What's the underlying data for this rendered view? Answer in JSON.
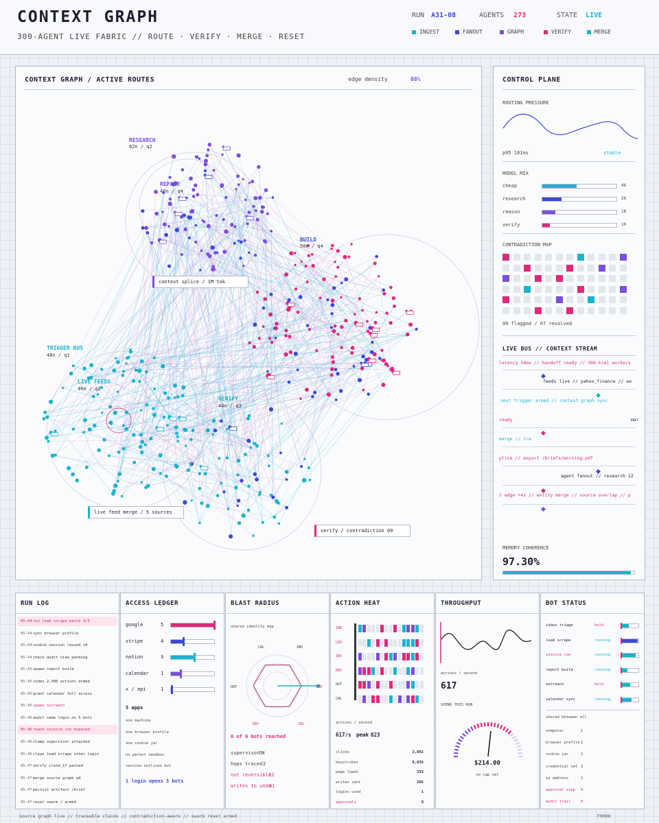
{
  "header": {
    "title": "CONTEXT GRAPH",
    "subtitle": "300-AGENT LIVE FABRIC // ROUTE · VERIFY · MERGE · RESET",
    "run_label": "RUN",
    "run_value": "A31-08",
    "agents_label": "AGENTS",
    "agents_value": "273",
    "state_label": "STATE",
    "state_value": "LIVE",
    "legend": [
      {
        "label": "INGEST",
        "color": "#18b4d0"
      },
      {
        "label": "FANOUT",
        "color": "#3b4ad8"
      },
      {
        "label": "GRAPH",
        "color": "#7c4ddf"
      },
      {
        "label": "VERIFY",
        "color": "#e0287a"
      },
      {
        "label": "MERGE",
        "color": "#18b4d0"
      }
    ]
  },
  "graph": {
    "title": "CONTEXT GRAPH / ACTIVE ROUTES",
    "density_label": "edge density",
    "density_value": "88%",
    "clusters": [
      {
        "name": "RESEARCH",
        "stat": "62n / q2",
        "color": "#7c4ddf"
      },
      {
        "name": "REPAIR",
        "stat": "46n / q4",
        "color": "#7c4ddf"
      },
      {
        "name": "BUILD",
        "stat": "50n / q4",
        "color": "#3b4ad8"
      },
      {
        "name": "TRIGGER BUS",
        "stat": "48n / q1",
        "color": "#18b4d0"
      },
      {
        "name": "LIVE FEEDS",
        "stat": "46n / q2",
        "color": "#18b4d0"
      },
      {
        "name": "VERIFY",
        "stat": "44n / q3",
        "color": "#18b4d0"
      }
    ],
    "callouts": [
      {
        "text": "context splice / 1M tok",
        "color": "#7c4ddf"
      },
      {
        "text": "live feed merge / 5 sources",
        "color": "#18b4d0"
      },
      {
        "text": "verify / contradiction 09",
        "color": "#e0287a"
      }
    ]
  },
  "control": {
    "title": "CONTROL PLANE",
    "pressure_label": "ROUTING PRESSURE",
    "p95": "p95 181ms",
    "pressure_state": "stable",
    "mix_label": "MODEL MIX",
    "mix": [
      {
        "name": "cheap",
        "value": 46,
        "color": "#18b4d0"
      },
      {
        "name": "research",
        "value": 26,
        "color": "#3b4ad8"
      },
      {
        "name": "reason",
        "value": 18,
        "color": "#7c4ddf"
      },
      {
        "name": "verify",
        "value": 10,
        "color": "#e0287a"
      }
    ],
    "contradiction_label": "CONTRADICTION MAP",
    "contradiction_summary": "09 flagged / 07 resolved",
    "bus_label": "LIVE BUS // CONTEXT STREAM",
    "bus_lines": [
      {
        "text": "latency 54ms  // handoff ready // 300 kimi workers",
        "color": "#e0287a"
      },
      {
        "text": "feeds live // yahoo_finance // wo",
        "color": "#1c1c2e"
      },
      {
        "text": "next trigger armed // context graph sync",
        "color": "#18b4d0"
      },
      {
        "text": "ready",
        "color": "#e0287a"
      },
      {
        "text": "mar",
        "color": "#1c1c2e"
      },
      {
        "text": "merge // tra",
        "color": "#18b4d0"
      },
      {
        "text": "plice // export /briefs/morning.pdf",
        "color": "#e0287a"
      },
      {
        "text": "agent fanout // research 12",
        "color": "#1c1c2e"
      },
      {
        "text": "t edge +41 // entity merge // source overlap // p",
        "color": "#e0287a"
      }
    ],
    "coherence_label": "MEMORY COHERENCE",
    "coherence_value": "97.30%",
    "coherence_fraction": 0.973
  },
  "runlog": {
    "title": "RUN LOG",
    "rows": [
      {
        "t": "05:44",
        "text": "run  lead scrape  batch 3/5",
        "hl": true
      },
      {
        "t": "05:44",
        "text": "sync  browser profile",
        "hl": false
      },
      {
        "t": "05:44",
        "text": "cookie session reused x4",
        "hl": false
      },
      {
        "t": "05:44",
        "text": "check audit view pending",
        "hl": false
      },
      {
        "t": "05:45",
        "text": "spawn report build",
        "hl": false
      },
      {
        "t": "05:45",
        "text": "index 2,300 actions armed",
        "hl": false
      },
      {
        "t": "05:45",
        "text": "grant calendar full access",
        "hl": false
      },
      {
        "t": "05:45",
        "text": "spawn outreach",
        "hl": false,
        "pink": true
      },
      {
        "t": "05:46",
        "text": "audit same login on 5 bots",
        "hl": false
      },
      {
        "t": "05:46",
        "text": "reach invoice run exposed",
        "hl": true
      },
      {
        "t": "05:46",
        "text": "clamp supervisor attached",
        "hl": false
      },
      {
        "t": "05:46",
        "text": "clean lead scrape other login",
        "hl": false
      },
      {
        "t": "05:47",
        "text": "verify claim_17 passed",
        "hl": false
      },
      {
        "t": "05:47",
        "text": "merge source graph q4",
        "hl": false
      },
      {
        "t": "05:47",
        "text": "persist artifact /brief",
        "hl": false
      },
      {
        "t": "05:47",
        "text": "reset swarm / armed",
        "hl": false
      }
    ]
  },
  "access": {
    "title": "ACCESS LEDGER",
    "rows": [
      {
        "name": "google",
        "count": "5",
        "fraction": 1.0,
        "color": "#e0287a"
      },
      {
        "name": "stripe",
        "count": "4",
        "fraction": 0.3,
        "color": "#3b4ad8"
      },
      {
        "name": "notion",
        "count": "3",
        "fraction": 0.55,
        "color": "#18b4d0"
      },
      {
        "name": "calendar",
        "count": "1",
        "fraction": 0.25,
        "color": "#7c4ddf"
      },
      {
        "name": "x / api",
        "count": "1",
        "fraction": 0.04,
        "color": "#3b4ad8"
      }
    ],
    "apps_label": "5 apps",
    "facts": [
      "one machine",
      "one browser profile",
      "one cookie jar",
      "no perbot sandbox",
      "session outlives bot"
    ],
    "summary": "1 login opens 5 bots"
  },
  "blast": {
    "title": "BLAST RADIUS",
    "caption": "shared identity map",
    "axes": [
      "CAL",
      "INV",
      "RED",
      "INV",
      "REP",
      "OUT"
    ],
    "reached": "6 of 6 bots reached",
    "supervisor_label": "supervisor",
    "supervisor_value": "ON",
    "hops_label": "hops traced",
    "hops_value": "2",
    "irrev_label": "not reversible",
    "irrev_value": "12",
    "writes_label": "writes to undo",
    "writes_value": "41"
  },
  "heat": {
    "title": "ACTION HEAT",
    "rows": [
      "INB",
      "LED",
      "INV",
      "REP",
      "OUT",
      "CAL"
    ],
    "rate_label": "actions / second",
    "rate_value": "617/s",
    "peak_label": "peak",
    "peak_value": "823",
    "stats": [
      {
        "name": "clicks",
        "value": "2,892"
      },
      {
        "name": "keystrokes",
        "value": "6,835"
      },
      {
        "name": "page loads",
        "value": "333"
      },
      {
        "name": "writes sent",
        "value": "265"
      },
      {
        "name": "logins used",
        "value": "1"
      },
      {
        "name": "approvals",
        "value": "6",
        "pink": true
      }
    ]
  },
  "throughput": {
    "title": "THROUGHPUT",
    "caption": "actions / second",
    "value": "617",
    "spend_label": "SPEND THIS RUN",
    "spend": "$214.00",
    "cap": "no cap set"
  },
  "botstatus": {
    "title": "BOT STATUS",
    "bots": [
      {
        "name": "inbox triage",
        "status": "held",
        "state_color": "#e0287a",
        "fraction": 0.45
      },
      {
        "name": "lead scrape",
        "status": "running",
        "state_color": "#18b4d0",
        "fraction": 0.95
      },
      {
        "name": "invoice run",
        "status": "running",
        "state_color": "#18b4d0",
        "fraction": 0.85,
        "pink": true
      },
      {
        "name": "report build",
        "status": "running",
        "state_color": "#18b4d0",
        "fraction": 0.35
      },
      {
        "name": "outreach",
        "status": "held",
        "state_color": "#e0287a",
        "fraction": 0.5
      },
      {
        "name": "calendar sync",
        "status": "running",
        "state_color": "#18b4d0",
        "fraction": 0.6
      }
    ],
    "shared_label": "shared between all",
    "shared": [
      {
        "name": "computer",
        "value": "1"
      },
      {
        "name": "browser profile",
        "value": "1"
      },
      {
        "name": "cookie jar",
        "value": "1"
      },
      {
        "name": "credential set",
        "value": "1"
      },
      {
        "name": "ip address",
        "value": "1"
      },
      {
        "name": "approval step",
        "value": "0",
        "pink": true
      },
      {
        "name": "audit trail",
        "value": "0",
        "pink": true
      }
    ]
  },
  "footer": {
    "text": "source graph live // traceable claims // contradiction-aware // swarm reset armed",
    "code": "F0080"
  }
}
